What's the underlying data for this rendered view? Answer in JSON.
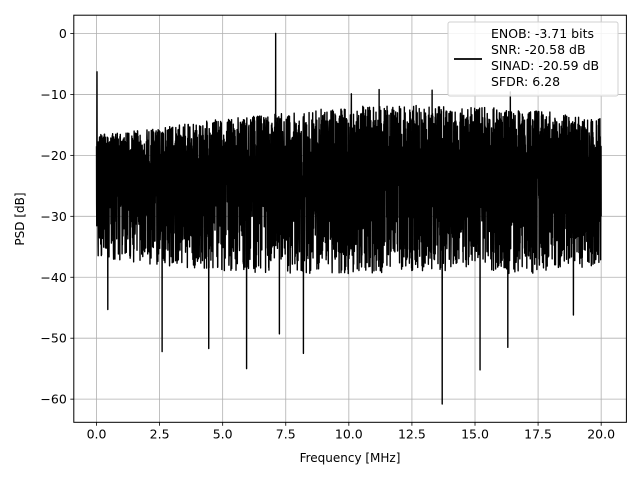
{
  "chart_data": {
    "type": "line",
    "title": "",
    "xlabel": "Frequency [MHz]",
    "ylabel": "PSD [dB]",
    "xlim": [
      -0.9,
      21.0
    ],
    "ylim": [
      -63.8,
      3.0
    ],
    "x_ticks": [
      0.0,
      2.5,
      5.0,
      7.5,
      10.0,
      12.5,
      15.0,
      17.5,
      20.0
    ],
    "x_tick_labels": [
      "0.0",
      "2.5",
      "5.0",
      "7.5",
      "10.0",
      "12.5",
      "15.0",
      "17.5",
      "20.0"
    ],
    "y_ticks": [
      0,
      -10,
      -20,
      -30,
      -40,
      -50,
      -60
    ],
    "y_tick_labels": [
      "0",
      "−10",
      "−20",
      "−30",
      "−40",
      "−50",
      "−60"
    ],
    "grid": true,
    "legend_position": "top-right",
    "legend_lines": [
      "ENOB: -3.71 bits",
      "SNR: -20.58 dB",
      "SINAD: -20.59 dB",
      "SFDR: 6.28"
    ],
    "line_color": "#000000",
    "series": [
      {
        "spikes": [
          {
            "x": 0.02,
            "y": -6.3
          },
          {
            "x": 7.1,
            "y": 0.0
          },
          {
            "x": 2.6,
            "y": -52.2
          },
          {
            "x": 4.45,
            "y": -51.7
          },
          {
            "x": 5.95,
            "y": -55.0
          },
          {
            "x": 7.25,
            "y": -49.3
          },
          {
            "x": 8.2,
            "y": -52.5
          },
          {
            "x": 13.7,
            "y": -60.8
          },
          {
            "x": 15.2,
            "y": -55.2
          },
          {
            "x": 16.3,
            "y": -51.5
          },
          {
            "x": 0.45,
            "y": -45.3
          },
          {
            "x": 18.9,
            "y": -46.2
          },
          {
            "x": 11.2,
            "y": -9.2
          },
          {
            "x": 13.3,
            "y": -9.3
          },
          {
            "x": 16.4,
            "y": -9.6
          },
          {
            "x": 10.1,
            "y": -9.9
          }
        ],
        "upper_envelope": [
          {
            "x": 0.2,
            "y": -16.5
          },
          {
            "x": 2.5,
            "y": -15.5
          },
          {
            "x": 5.0,
            "y": -14.0
          },
          {
            "x": 7.5,
            "y": -13.0
          },
          {
            "x": 10.0,
            "y": -12.0
          },
          {
            "x": 12.5,
            "y": -11.8
          },
          {
            "x": 15.0,
            "y": -12.0
          },
          {
            "x": 17.5,
            "y": -12.5
          },
          {
            "x": 20.0,
            "y": -14.0
          }
        ],
        "lower_envelope": [
          {
            "x": 0.2,
            "y": -37.0
          },
          {
            "x": 2.5,
            "y": -38.0
          },
          {
            "x": 5.0,
            "y": -39.0
          },
          {
            "x": 7.5,
            "y": -39.5
          },
          {
            "x": 10.0,
            "y": -39.5
          },
          {
            "x": 12.5,
            "y": -39.0
          },
          {
            "x": 15.0,
            "y": -39.5
          },
          {
            "x": 17.5,
            "y": -39.5
          },
          {
            "x": 20.0,
            "y": -38.0
          }
        ],
        "noise_center_y": -22.5,
        "x_start": 0.0,
        "x_end": 20.0
      }
    ]
  }
}
